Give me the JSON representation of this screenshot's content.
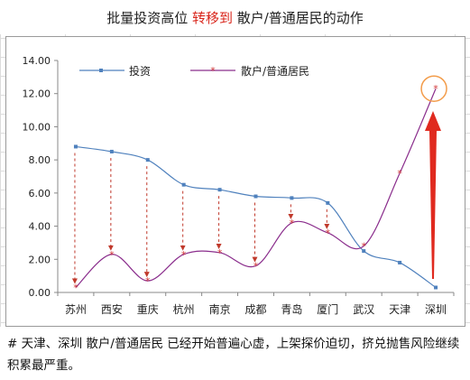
{
  "title": {
    "part1": "批量投资高位 ",
    "part2": "转移到",
    "part3": " 散户/普通居民的动作"
  },
  "colors": {
    "series1": "#4f81bd",
    "series2": "#8a2d8c",
    "arrow": "#c0392b",
    "circle": "#f39c4a",
    "title_highlight": "#d9261c"
  },
  "chart_data": {
    "type": "line",
    "categories": [
      "苏州",
      "西安",
      "重庆",
      "杭州",
      "南京",
      "成都",
      "青岛",
      "厦门",
      "武汉",
      "天津",
      "深圳"
    ],
    "series": [
      {
        "name": "投资",
        "values": [
          8.8,
          8.5,
          8.0,
          6.5,
          6.2,
          5.8,
          5.7,
          5.4,
          2.5,
          1.8,
          0.3
        ]
      },
      {
        "name": "散户/普通居民",
        "values": [
          0.3,
          2.3,
          0.7,
          2.3,
          2.4,
          1.6,
          4.2,
          3.6,
          2.8,
          7.2,
          12.3
        ]
      }
    ],
    "yticks": [
      "0.00",
      "2.00",
      "4.00",
      "6.00",
      "8.00",
      "10.00",
      "12.00",
      "14.00"
    ],
    "ylim": [
      0,
      14
    ],
    "legend_position": "top",
    "grid": false
  },
  "note": "# 天津、深圳 散户/普通居民 已经开始普遍心虚，上架探价迫切，挤兑抛售风险继续积累最严重。"
}
